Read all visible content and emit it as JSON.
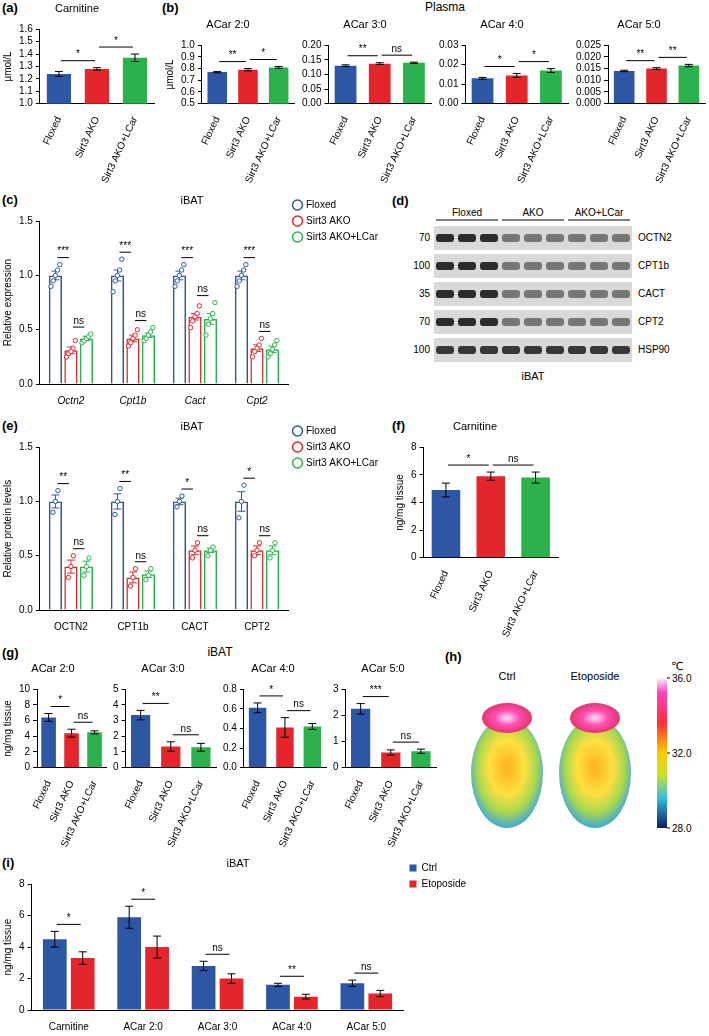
{
  "chart_data": [
    {
      "panel": "(a)",
      "type": "bar",
      "title": "Carnitine",
      "y_label": "μmol/L",
      "categories": [
        "Floxed",
        "Sirt3 AKO",
        "Sirt3 AKO+LCar"
      ],
      "values": [
        1.24,
        1.28,
        1.37
      ],
      "errors": [
        0.02,
        0.01,
        0.03
      ],
      "colors": [
        "#2d56a5",
        "#e3262b",
        "#2bb24c"
      ],
      "ylim": [
        1.0,
        1.6
      ],
      "yticks": [
        {
          "value": 1.0,
          "label": "1.0"
        },
        1.1,
        1.2,
        1.3,
        1.4,
        1.5,
        1.6
      ],
      "grid": false,
      "annotations": [
        {
          "text": "*",
          "from": 0,
          "to": 1
        },
        {
          "text": "*",
          "from": 1,
          "to": 2
        }
      ]
    },
    {
      "panel": "(b)",
      "type": "bar",
      "title": "ACar 2:0",
      "y_label": "μmol/L",
      "categories": [
        "Floxed",
        "Sirt3 AKO",
        "Sirt3 AKO+LCar"
      ],
      "values": [
        0.77,
        0.79,
        0.81
      ],
      "errors": [
        0.006,
        0.01,
        0.008
      ],
      "colors": [
        "#2d56a5",
        "#e3262b",
        "#2bb24c"
      ],
      "ylim": [
        0.5,
        1.0
      ],
      "yticks": [
        0.5,
        0.6,
        0.7,
        0.8,
        0.9,
        {
          "value": 1.0,
          "label": "1.0"
        }
      ],
      "grid": false,
      "annotations": [
        {
          "text": "**",
          "from": 0,
          "to": 1
        },
        {
          "text": "*",
          "from": 1,
          "to": 2
        }
      ]
    },
    {
      "type": "bar",
      "title": "ACar 3:0",
      "categories": [
        "Floxed",
        "Sirt3 AKO",
        "Sirt3 AKO+LCar"
      ],
      "values": [
        0.13,
        0.137,
        0.14
      ],
      "errors": [
        0.003,
        0.003,
        0.002
      ],
      "colors": [
        "#2d56a5",
        "#e3262b",
        "#2bb24c"
      ],
      "ylim": [
        0,
        0.2
      ],
      "yticks": [
        {
          "value": 0,
          "label": "0.00"
        },
        0.05,
        {
          "value": 0.1,
          "label": "0.10"
        },
        0.15,
        {
          "value": 0.2,
          "label": "0.20"
        }
      ],
      "grid": false,
      "annotations": [
        {
          "text": "**",
          "from": 0,
          "to": 1
        },
        {
          "text": "ns",
          "from": 1,
          "to": 2
        }
      ]
    },
    {
      "type": "bar",
      "title": "ACar 4:0",
      "categories": [
        "Floxed",
        "Sirt3 AKO",
        "Sirt3 AKO+LCar"
      ],
      "values": [
        0.013,
        0.0145,
        0.017
      ],
      "errors": [
        0.0005,
        0.001,
        0.001
      ],
      "colors": [
        "#2d56a5",
        "#e3262b",
        "#2bb24c"
      ],
      "ylim": [
        0,
        0.03
      ],
      "yticks": [
        {
          "value": 0,
          "label": "0.00"
        },
        0.01,
        0.02,
        0.03
      ],
      "grid": false,
      "annotations": [
        {
          "text": "*",
          "from": 0,
          "to": 1
        },
        {
          "text": "*",
          "from": 1,
          "to": 2
        }
      ]
    },
    {
      "type": "bar",
      "title": "ACar 5:0",
      "categories": [
        "Floxed",
        "Sirt3 AKO",
        "Sirt3 AKO+LCar"
      ],
      "values": [
        0.014,
        0.015,
        0.0163
      ],
      "errors": [
        0.0003,
        0.0004,
        0.0005
      ],
      "colors": [
        "#2d56a5",
        "#e3262b",
        "#2bb24c"
      ],
      "ylim": [
        0,
        0.025
      ],
      "yticks": [
        {
          "value": 0,
          "label": "0.000"
        },
        0.005,
        {
          "value": 0.01,
          "label": "0.010"
        },
        0.015,
        {
          "value": 0.02,
          "label": "0.020"
        },
        0.025
      ],
      "grid": false,
      "annotations": [
        {
          "text": "**",
          "from": 0,
          "to": 1
        },
        {
          "text": "**",
          "from": 1,
          "to": 2
        }
      ]
    },
    {
      "panel": "(c)",
      "type": "bar",
      "title": "iBAT",
      "y_label": "Relative expression",
      "categories": [
        "Octn2",
        "Cpt1b",
        "Cact",
        "Cpt2"
      ],
      "series": [
        {
          "name": "Floxed",
          "color": "#2d56a5",
          "values": [
            1.0,
            1.0,
            1.0,
            1.0
          ],
          "errors": [
            0.04,
            0.05,
            0.04,
            0.04
          ],
          "points": [
            [
              0.9,
              0.95,
              1.0,
              1.05,
              1.1
            ],
            [
              0.85,
              0.95,
              1.0,
              1.05,
              1.15
            ],
            [
              0.9,
              0.95,
              1.0,
              1.05,
              1.1
            ],
            [
              0.9,
              0.95,
              1.0,
              1.05,
              1.1
            ]
          ]
        },
        {
          "name": "Sirt3 AKO",
          "color": "#e3262b",
          "values": [
            0.31,
            0.42,
            0.62,
            0.33
          ],
          "errors": [
            0.03,
            0.03,
            0.03,
            0.03
          ],
          "points": [
            [
              0.25,
              0.28,
              0.3,
              0.33,
              0.4
            ],
            [
              0.35,
              0.38,
              0.42,
              0.45,
              0.5
            ],
            [
              0.52,
              0.58,
              0.62,
              0.65,
              0.72
            ],
            [
              0.25,
              0.3,
              0.33,
              0.36,
              0.42
            ]
          ]
        },
        {
          "name": "Sirt3 AKO+LCar",
          "color": "#2bb24c",
          "values": [
            0.42,
            0.45,
            0.6,
            0.32
          ],
          "errors": [
            0.02,
            0.02,
            0.05,
            0.03
          ],
          "points": [
            [
              0.38,
              0.4,
              0.42,
              0.44,
              0.46
            ],
            [
              0.4,
              0.42,
              0.45,
              0.48,
              0.52
            ],
            [
              0.45,
              0.55,
              0.6,
              0.65,
              0.75
            ],
            [
              0.25,
              0.28,
              0.32,
              0.36,
              0.4
            ]
          ]
        }
      ],
      "ylim": [
        0,
        1.5
      ],
      "yticks": [
        {
          "value": 0,
          "label": "0.0"
        },
        0.5,
        {
          "value": 1.0,
          "label": "1.0"
        },
        1.5
      ],
      "grid": false,
      "legend": "top-right",
      "annotations": [
        {
          "text": "***",
          "category": 0,
          "from": 0,
          "to": 1
        },
        {
          "text": "ns",
          "category": 0,
          "from": 1,
          "to": 2
        },
        {
          "text": "***",
          "category": 1,
          "from": 0,
          "to": 1
        },
        {
          "text": "ns",
          "category": 1,
          "from": 1,
          "to": 2
        },
        {
          "text": "***",
          "category": 2,
          "from": 0,
          "to": 1
        },
        {
          "text": "ns",
          "category": 2,
          "from": 1,
          "to": 2
        },
        {
          "text": "***",
          "category": 3,
          "from": 0,
          "to": 1
        },
        {
          "text": "ns",
          "category": 3,
          "from": 1,
          "to": 2
        }
      ]
    },
    {
      "panel": "(e)",
      "type": "bar",
      "title": "iBAT",
      "y_label": "Relative protein levels",
      "categories": [
        "OCTN2",
        "CPT1b",
        "CACT",
        "CPT2"
      ],
      "series": [
        {
          "name": "Floxed",
          "color": "#2d56a5",
          "values": [
            1.0,
            1.0,
            1.0,
            1.0
          ],
          "errors": [
            0.06,
            0.07,
            0.03,
            0.09
          ],
          "points": [
            [
              0.9,
              1.0,
              1.1
            ],
            [
              0.88,
              1.0,
              1.12
            ],
            [
              0.95,
              1.0,
              1.05
            ],
            [
              0.85,
              1.0,
              1.15
            ]
          ]
        },
        {
          "name": "Sirt3 AKO",
          "color": "#e3262b",
          "values": [
            0.4,
            0.3,
            0.55,
            0.55
          ],
          "errors": [
            0.06,
            0.05,
            0.04,
            0.04
          ],
          "points": [
            [
              0.3,
              0.4,
              0.5
            ],
            [
              0.22,
              0.3,
              0.38
            ],
            [
              0.48,
              0.55,
              0.62
            ],
            [
              0.5,
              0.55,
              0.62
            ]
          ]
        },
        {
          "name": "Sirt3 AKO+LCar",
          "color": "#2bb24c",
          "values": [
            0.4,
            0.33,
            0.55,
            0.55
          ],
          "errors": [
            0.05,
            0.03,
            0.02,
            0.04
          ],
          "points": [
            [
              0.32,
              0.4,
              0.48
            ],
            [
              0.28,
              0.32,
              0.38
            ],
            [
              0.5,
              0.55,
              0.58
            ],
            [
              0.48,
              0.55,
              0.62
            ]
          ]
        }
      ],
      "ylim": [
        0,
        1.5
      ],
      "yticks": [
        {
          "value": 0,
          "label": "0.0"
        },
        0.5,
        {
          "value": 1.0,
          "label": "1.0"
        },
        1.5
      ],
      "grid": false,
      "legend": "top-right",
      "annotations": [
        {
          "text": "**",
          "category": 0,
          "from": 0,
          "to": 1
        },
        {
          "text": "ns",
          "category": 0,
          "from": 1,
          "to": 2
        },
        {
          "text": "**",
          "category": 1,
          "from": 0,
          "to": 1
        },
        {
          "text": "ns",
          "category": 1,
          "from": 1,
          "to": 2
        },
        {
          "text": "*",
          "category": 2,
          "from": 0,
          "to": 1
        },
        {
          "text": "ns",
          "category": 2,
          "from": 1,
          "to": 2
        },
        {
          "text": "*",
          "category": 3,
          "from": 0,
          "to": 1
        },
        {
          "text": "ns",
          "category": 3,
          "from": 1,
          "to": 2
        }
      ]
    },
    {
      "panel": "(f)",
      "type": "bar",
      "title": "Carnitine",
      "y_label": "ng/mg tissue",
      "categories": [
        "Floxed",
        "Sirt3 AKO",
        "Sirt3 AKO+LCar"
      ],
      "values": [
        4.9,
        5.9,
        5.8
      ],
      "errors": [
        0.5,
        0.3,
        0.4
      ],
      "colors": [
        "#2d56a5",
        "#e3262b",
        "#2bb24c"
      ],
      "ylim": [
        0,
        8
      ],
      "yticks": [
        0,
        2,
        4,
        6,
        8
      ],
      "grid": false,
      "annotations": [
        {
          "text": "*",
          "from": 0,
          "to": 1
        },
        {
          "text": "ns",
          "from": 1,
          "to": 2
        }
      ]
    },
    {
      "panel": "(g)",
      "type": "bar",
      "title": "ACar 2:0",
      "y_label": "ng/mg tissue",
      "categories": [
        "Floxed",
        "Sirt3 AKO",
        "Sirt3 AKO+LCar"
      ],
      "values": [
        6.4,
        4.4,
        4.5
      ],
      "errors": [
        0.5,
        0.5,
        0.2
      ],
      "colors": [
        "#2d56a5",
        "#e3262b",
        "#2bb24c"
      ],
      "ylim": [
        0,
        10
      ],
      "yticks": [
        0,
        2,
        4,
        6,
        8,
        10
      ],
      "grid": false,
      "annotations": [
        {
          "text": "*",
          "from": 0,
          "to": 1
        },
        {
          "text": "ns",
          "from": 1,
          "to": 2
        }
      ]
    },
    {
      "type": "bar",
      "title": "ACar 3:0",
      "categories": [
        "Floxed",
        "Sirt3 AKO",
        "Sirt3 AKO+LCar"
      ],
      "values": [
        3.35,
        1.35,
        1.3
      ],
      "errors": [
        0.3,
        0.3,
        0.25
      ],
      "colors": [
        "#2d56a5",
        "#e3262b",
        "#2bb24c"
      ],
      "ylim": [
        0,
        5
      ],
      "yticks": [
        0,
        1,
        2,
        3,
        4,
        5
      ],
      "grid": false,
      "annotations": [
        {
          "text": "**",
          "from": 0,
          "to": 1
        },
        {
          "text": "ns",
          "from": 1,
          "to": 2
        }
      ]
    },
    {
      "type": "bar",
      "title": "ACar 4:0",
      "categories": [
        "Floxed",
        "Sirt3 AKO",
        "Sirt3 AKO+LCar"
      ],
      "values": [
        0.61,
        0.41,
        0.42
      ],
      "errors": [
        0.05,
        0.1,
        0.03
      ],
      "colors": [
        "#2d56a5",
        "#e3262b",
        "#2bb24c"
      ],
      "ylim": [
        0,
        0.8
      ],
      "yticks": [
        {
          "value": 0,
          "label": "0.0"
        },
        0.2,
        0.4,
        0.6,
        0.8
      ],
      "grid": false,
      "annotations": [
        {
          "text": "*",
          "from": 0,
          "to": 1
        },
        {
          "text": "ns",
          "from": 1,
          "to": 2
        }
      ]
    },
    {
      "type": "bar",
      "title": "ACar 5:0",
      "categories": [
        "Floxed",
        "Sirt3 AKO",
        "Sirt3 AKO+LCar"
      ],
      "values": [
        2.25,
        0.58,
        0.63
      ],
      "errors": [
        0.2,
        0.1,
        0.08
      ],
      "colors": [
        "#2d56a5",
        "#e3262b",
        "#2bb24c"
      ],
      "ylim": [
        0,
        3
      ],
      "yticks": [
        0,
        1,
        2,
        3
      ],
      "grid": false,
      "annotations": [
        {
          "text": "***",
          "from": 0,
          "to": 1
        },
        {
          "text": "ns",
          "from": 1,
          "to": 2
        }
      ]
    },
    {
      "panel": "(i)",
      "type": "bar",
      "title": "iBAT",
      "y_label": "ng/mg tissue",
      "categories": [
        "Carnitine",
        "ACar 2:0",
        "ACar 3:0",
        "ACar 4:0",
        "ACar 5:0"
      ],
      "series": [
        {
          "name": "Ctrl",
          "color": "#2d56a5",
          "values": [
            4.5,
            5.9,
            2.8,
            1.6,
            1.7
          ],
          "errors": [
            0.5,
            0.7,
            0.3,
            0.1,
            0.2
          ]
        },
        {
          "name": "Etoposide",
          "color": "#e3262b",
          "values": [
            3.3,
            4.0,
            2.0,
            0.85,
            1.05
          ],
          "errors": [
            0.4,
            0.7,
            0.3,
            0.15,
            0.2
          ]
        }
      ],
      "ylim": [
        0,
        8
      ],
      "yticks": [
        0,
        2,
        4,
        6,
        8
      ],
      "grid": false,
      "legend": "top-right",
      "annotations": [
        {
          "text": "*",
          "category": 0,
          "from": 0,
          "to": 1
        },
        {
          "text": "*",
          "category": 1,
          "from": 0,
          "to": 1
        },
        {
          "text": "ns",
          "category": 2,
          "from": 0,
          "to": 1
        },
        {
          "text": "**",
          "category": 3,
          "from": 0,
          "to": 1
        },
        {
          "text": "ns",
          "category": 4,
          "from": 0,
          "to": 1
        }
      ]
    }
  ],
  "headings": [
    "Plasma",
    "iBAT"
  ],
  "blot": {
    "panel": "(d)",
    "groups": [
      "Floxed",
      "AKO",
      "AKO+LCar"
    ],
    "rows": [
      {
        "marker": 70,
        "protein": "OCTN2"
      },
      {
        "marker": 100,
        "protein": "CPT1b"
      },
      {
        "marker": 35,
        "protein": "CACT"
      },
      {
        "marker": 70,
        "protein": "CPT2"
      },
      {
        "marker": 100,
        "protein": "HSP90"
      }
    ],
    "tissue": "iBAT"
  },
  "thermal": {
    "panel": "(h)",
    "labels": [
      "Ctrl",
      "Etoposide"
    ],
    "unit": "℃",
    "range": [
      28,
      36
    ],
    "ticks": [
      {
        "value": 36,
        "label": "36.0"
      },
      {
        "value": 32,
        "label": "32.0"
      },
      {
        "value": 28,
        "label": "28.0"
      }
    ]
  }
}
